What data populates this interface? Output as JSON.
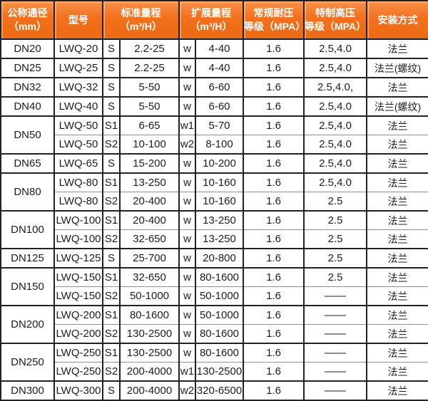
{
  "colors": {
    "header_bg": "#f2701c",
    "header_bg_highlight": "#f8904a",
    "header_bg_dark": "#ed6a12",
    "header_text": "#ffffff",
    "border_dark": "#222222",
    "border_light": "#909090",
    "body_text": "#1d1d1d",
    "body_bg": "#ffffff"
  },
  "table": {
    "header": [
      {
        "id": "nominal-diameter",
        "lines": [
          "公称通径",
          "（mm）"
        ]
      },
      {
        "id": "model",
        "lines": [
          "型号",
          ""
        ]
      },
      {
        "id": "standard-range",
        "lines": [
          "标准量程",
          "（m³/H）"
        ]
      },
      {
        "id": "extended-range",
        "lines": [
          "扩展量程",
          "（m³/H）"
        ]
      },
      {
        "id": "normal-pressure",
        "lines": [
          "常规耐压",
          "等级（MPA）"
        ]
      },
      {
        "id": "high-pressure",
        "lines": [
          "特制高压",
          "等级（MPA）"
        ]
      },
      {
        "id": "installation",
        "lines": [
          "安装方式",
          ""
        ]
      }
    ],
    "rows": [
      {
        "dn": "DN20",
        "dn_span": 1,
        "group_start": true,
        "model": "LWQ-20",
        "std_code": "S",
        "std_range": "2.2-25",
        "ext_code": "w",
        "ext_range": "4-40",
        "normal_pressure": "1.6",
        "high_pressure": "2.5,4.0",
        "installation": "法兰"
      },
      {
        "dn": "DN25",
        "dn_span": 1,
        "group_start": true,
        "model": "LWQ-25",
        "std_code": "S",
        "std_range": "2.2-25",
        "ext_code": "w",
        "ext_range": "4-40",
        "normal_pressure": "1.6",
        "high_pressure": "2.5,4.0",
        "installation": "法兰(螺纹)"
      },
      {
        "dn": "DN32",
        "dn_span": 1,
        "group_start": true,
        "model": "LWQ-32",
        "std_code": "S",
        "std_range": "5-50",
        "ext_code": "w",
        "ext_range": "6-60",
        "normal_pressure": "1.6",
        "high_pressure": "2.5,4.0,",
        "installation": "法兰"
      },
      {
        "dn": "DN40",
        "dn_span": 1,
        "group_start": true,
        "model": "LWQ-40",
        "std_code": "S",
        "std_range": "5-50",
        "ext_code": "w",
        "ext_range": "6-60",
        "normal_pressure": "1.6",
        "high_pressure": "2.5,4.0",
        "installation": "法兰(螺纹)"
      },
      {
        "dn": "DN50",
        "dn_span": 2,
        "group_start": true,
        "model": "LWQ-50",
        "std_code": "S1",
        "std_range": "6-65",
        "ext_code": "w1",
        "ext_range": "5-70",
        "normal_pressure": "1.6",
        "high_pressure": "2.5,4.0",
        "installation": "法兰"
      },
      {
        "dn": "",
        "dn_span": 0,
        "group_start": false,
        "model": "LWQ-50",
        "std_code": "S2",
        "std_range": "10-100",
        "ext_code": "w2",
        "ext_range": "8-100",
        "normal_pressure": "1.6",
        "high_pressure": "2.5,4.0",
        "installation": "法兰"
      },
      {
        "dn": "DN65",
        "dn_span": 1,
        "group_start": true,
        "model": "LWQ-65",
        "std_code": "S",
        "std_range": "15-200",
        "ext_code": "w",
        "ext_range": "10-200",
        "normal_pressure": "1.6",
        "high_pressure": "2.5,4.0",
        "installation": "法兰"
      },
      {
        "dn": "DN80",
        "dn_span": 2,
        "group_start": true,
        "model": "LWQ-80",
        "std_code": "S1",
        "std_range": "13-250",
        "ext_code": "w",
        "ext_range": "10-160",
        "normal_pressure": "1.6",
        "high_pressure": "2.5,4.0",
        "installation": "法兰"
      },
      {
        "dn": "",
        "dn_span": 0,
        "group_start": false,
        "model": "LWQ-80",
        "std_code": "S2",
        "std_range": "20-400",
        "ext_code": "w",
        "ext_range": "10-160",
        "normal_pressure": "1.6",
        "high_pressure": "2.5",
        "installation": "法兰"
      },
      {
        "dn": "DN100",
        "dn_span": 2,
        "group_start": true,
        "model": "LWQ-100",
        "std_code": "S1",
        "std_range": "20-400",
        "ext_code": "w",
        "ext_range": "13-250",
        "normal_pressure": "1.6",
        "high_pressure": "2.5",
        "installation": "法兰"
      },
      {
        "dn": "",
        "dn_span": 0,
        "group_start": false,
        "model": "LWQ-100",
        "std_code": "S2",
        "std_range": "32-650",
        "ext_code": "w",
        "ext_range": "13-250",
        "normal_pressure": "1.6",
        "high_pressure": "2.5",
        "installation": "法兰"
      },
      {
        "dn": "DN125",
        "dn_span": 1,
        "group_start": true,
        "model": "LWQ-125",
        "std_code": "S",
        "std_range": "25-700",
        "ext_code": "w",
        "ext_range": "20-800",
        "normal_pressure": "1.6",
        "high_pressure": "2.5",
        "installation": "法兰"
      },
      {
        "dn": "DN150",
        "dn_span": 2,
        "group_start": true,
        "model": "LWQ-150",
        "std_code": "S1",
        "std_range": "32-650",
        "ext_code": "w",
        "ext_range": "80-1600",
        "normal_pressure": "1.6",
        "high_pressure": "2.5",
        "installation": "法兰"
      },
      {
        "dn": "",
        "dn_span": 0,
        "group_start": false,
        "model": "LWQ-150",
        "std_code": "S2",
        "std_range": "50-1000",
        "ext_code": "w",
        "ext_range": "50-1000",
        "normal_pressure": "1.6",
        "high_pressure": "——",
        "installation": "法兰"
      },
      {
        "dn": "DN200",
        "dn_span": 2,
        "group_start": true,
        "model": "LWQ-200",
        "std_code": "S1",
        "std_range": "80-1600",
        "ext_code": "w",
        "ext_range": "50-1000",
        "normal_pressure": "1.6",
        "high_pressure": "——",
        "installation": "法兰"
      },
      {
        "dn": "",
        "dn_span": 0,
        "group_start": false,
        "model": "LWQ-200",
        "std_code": "S2",
        "std_range": "130-2500",
        "ext_code": "w",
        "ext_range": "80-1600",
        "normal_pressure": "1.6",
        "high_pressure": "——",
        "installation": "法兰"
      },
      {
        "dn": "DN250",
        "dn_span": 2,
        "group_start": true,
        "model": "LWQ-250",
        "std_code": "S1",
        "std_range": "130-2500",
        "ext_code": "w",
        "ext_range": "80-1600",
        "normal_pressure": "1.6",
        "high_pressure": "——",
        "installation": "法兰"
      },
      {
        "dn": "",
        "dn_span": 0,
        "group_start": false,
        "model": "LWQ-250",
        "std_code": "S2",
        "std_range": "200-4000",
        "ext_code": "w1",
        "ext_range": "130-2500",
        "normal_pressure": "1.6",
        "high_pressure": "——",
        "installation": "法兰"
      },
      {
        "dn": "DN300",
        "dn_span": 1,
        "group_start": true,
        "model": "LWQ-300",
        "std_code": "S",
        "std_range": "200-4000",
        "ext_code": "w2",
        "ext_range": "320-6500",
        "normal_pressure": "1.6",
        "high_pressure": "——",
        "installation": "法兰"
      }
    ]
  }
}
